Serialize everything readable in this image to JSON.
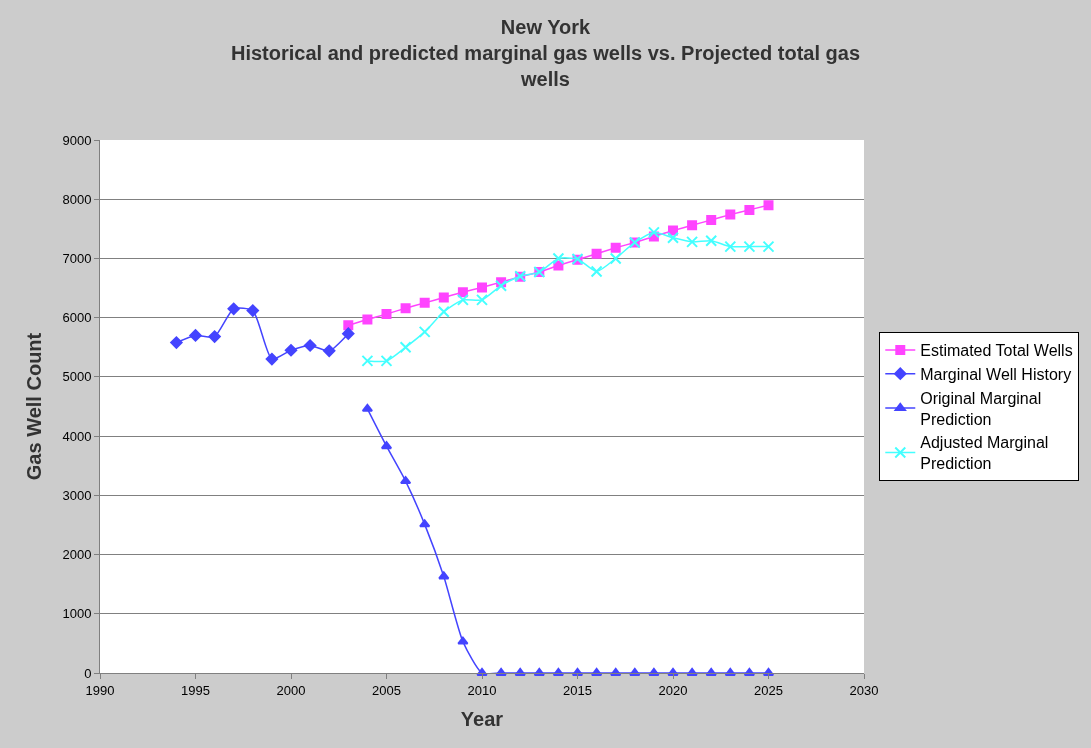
{
  "chart_data": {
    "type": "line",
    "title": "New York\nHistorical and predicted marginal gas wells vs. Projected total gas\nwells",
    "xlabel": "Year",
    "ylabel": "Gas Well Count",
    "xlim": [
      1990,
      2030
    ],
    "xticks": [
      1990,
      1995,
      2000,
      2005,
      2010,
      2015,
      2020,
      2025,
      2030
    ],
    "ylim": [
      0,
      9000
    ],
    "yticks": [
      0,
      1000,
      2000,
      3000,
      4000,
      5000,
      6000,
      7000,
      8000,
      9000
    ],
    "grid": "y",
    "legend": "right",
    "series": [
      {
        "name": "Estimated Total Wells",
        "color": "#ff44ff",
        "marker": "square",
        "x": [
          2003,
          2004,
          2005,
          2006,
          2007,
          2008,
          2009,
          2010,
          2011,
          2012,
          2013,
          2014,
          2015,
          2016,
          2017,
          2018,
          2019,
          2020,
          2021,
          2022,
          2023,
          2024,
          2025
        ],
        "values": [
          5870,
          5970,
          6060,
          6160,
          6250,
          6340,
          6430,
          6510,
          6600,
          6690,
          6770,
          6880,
          6980,
          7080,
          7180,
          7270,
          7370,
          7470,
          7560,
          7650,
          7740,
          7820,
          7900
        ]
      },
      {
        "name": "Marginal Well History",
        "color": "#4444ff",
        "marker": "diamond",
        "x": [
          1994,
          1995,
          1996,
          1997,
          1998,
          1999,
          2000,
          2001,
          2002,
          2003
        ],
        "values": [
          5580,
          5700,
          5680,
          6150,
          6120,
          5300,
          5450,
          5530,
          5440,
          5730
        ]
      },
      {
        "name": "Original Marginal\nPrediction",
        "color": "#4444ff",
        "marker": "triangle",
        "x": [
          2004,
          2005,
          2006,
          2007,
          2008,
          2009,
          2010,
          2011,
          2012,
          2013,
          2014,
          2015,
          2016,
          2017,
          2018,
          2019,
          2020,
          2021,
          2022,
          2023,
          2024,
          2025
        ],
        "values": [
          4460,
          3830,
          3240,
          2510,
          1630,
          530,
          0,
          0,
          0,
          0,
          0,
          0,
          0,
          0,
          0,
          0,
          0,
          0,
          0,
          0,
          0,
          0
        ]
      },
      {
        "name": "Adjusted Marginal\nPrediction",
        "color": "#44ffff",
        "marker": "cross",
        "x": [
          2004,
          2005,
          2006,
          2007,
          2008,
          2009,
          2010,
          2011,
          2012,
          2013,
          2014,
          2015,
          2016,
          2017,
          2018,
          2019,
          2020,
          2021,
          2022,
          2023,
          2024,
          2025
        ],
        "values": [
          5270,
          5270,
          5500,
          5760,
          6100,
          6300,
          6300,
          6540,
          6700,
          6770,
          7000,
          6990,
          6780,
          7000,
          7270,
          7440,
          7350,
          7280,
          7300,
          7200,
          7200,
          7200
        ]
      }
    ]
  }
}
